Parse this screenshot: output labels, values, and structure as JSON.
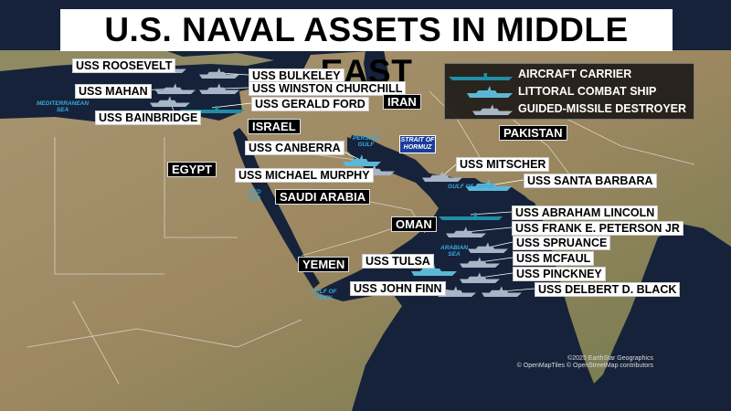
{
  "title": "U.S. NAVAL ASSETS IN MIDDLE EAST",
  "colors": {
    "carrier": "#1f8ea6",
    "littoral": "#5db7d4",
    "destroyer": "#a7b6c6",
    "sea": "#16233a",
    "land": "#9a8866",
    "water_label": "#3aa9dc",
    "strait_box": "#1a3d9c"
  },
  "legend": {
    "items": [
      {
        "type": "carrier",
        "label": "AIRCRAFT CARRIER"
      },
      {
        "type": "littoral",
        "label": "LITTORAL COMBAT SHIP"
      },
      {
        "type": "destroyer",
        "label": "GUIDED-MISSILE DESTROYER"
      }
    ]
  },
  "ships": [
    {
      "name": "USS ROOSEVELT",
      "type": "destroyer"
    },
    {
      "name": "USS BULKELEY",
      "type": "destroyer"
    },
    {
      "name": "USS MAHAN",
      "type": "destroyer"
    },
    {
      "name": "USS WINSTON CHURCHILL",
      "type": "destroyer"
    },
    {
      "name": "USS GERALD FORD",
      "type": "carrier"
    },
    {
      "name": "USS BAINBRIDGE",
      "type": "destroyer"
    },
    {
      "name": "USS CANBERRA",
      "type": "littoral"
    },
    {
      "name": "USS MICHAEL MURPHY",
      "type": "destroyer"
    },
    {
      "name": "USS MITSCHER",
      "type": "destroyer"
    },
    {
      "name": "USS SANTA BARBARA",
      "type": "littoral"
    },
    {
      "name": "USS ABRAHAM LINCOLN",
      "type": "carrier"
    },
    {
      "name": "USS FRANK E. PETERSON JR",
      "type": "destroyer"
    },
    {
      "name": "USS SPRUANCE",
      "type": "destroyer"
    },
    {
      "name": "USS MCFAUL",
      "type": "destroyer"
    },
    {
      "name": "USS TULSA",
      "type": "littoral"
    },
    {
      "name": "USS PINCKNEY",
      "type": "destroyer"
    },
    {
      "name": "USS JOHN FINN",
      "type": "destroyer"
    },
    {
      "name": "USS DELBERT D. BLACK",
      "type": "destroyer"
    }
  ],
  "countries": [
    "ISRAEL",
    "IRAN",
    "PAKISTAN",
    "EGYPT",
    "SAUDI ARABIA",
    "OMAN",
    "YEMEN"
  ],
  "water_labels": [
    "MEDITERRANEAN\nSEA",
    "PERSIAN\nGULF",
    "GULF OF OMAN",
    "RED\nSEA",
    "ARABIAN\nSEA",
    "GULF OF\nADEN"
  ],
  "strait": "STRAIT OF HORMUZ",
  "credits": {
    "line1": "©2025 EarthStar Geographics",
    "line2": "© OpenMapTiles © OpenStreetMap contributors"
  }
}
